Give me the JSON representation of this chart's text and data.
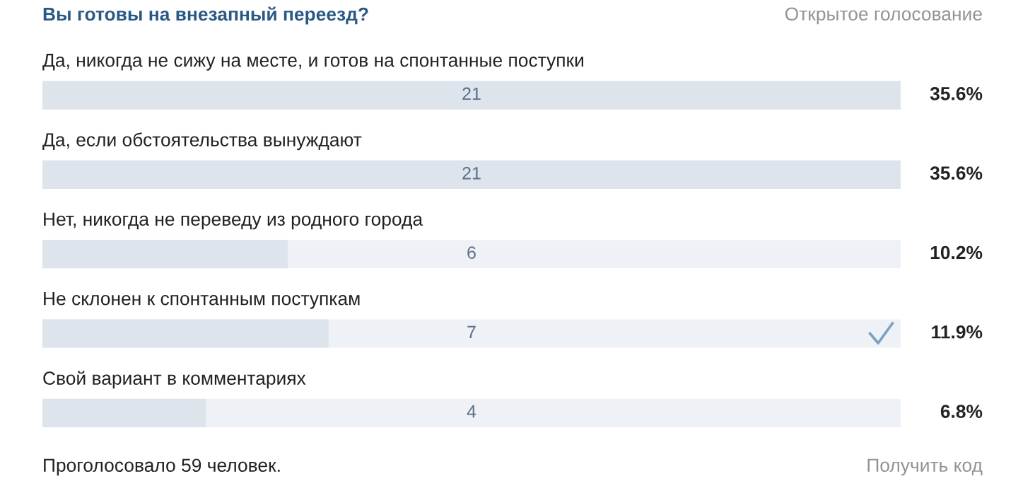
{
  "chart_data": {
    "type": "bar",
    "orientation": "horizontal",
    "title": "Вы готовы на внезапный переезд?",
    "categories": [
      "Да, никогда не сижу на месте, и готов на спонтанные поступки",
      "Да, если обстоятельства вынуждают",
      "Нет, никогда не переведу из родного города",
      "Не склонен к спонтанным поступкам",
      "Свой вариант в комментариях"
    ],
    "values": [
      21,
      21,
      6,
      7,
      4
    ],
    "color": "#dde4ec",
    "data_labels": true,
    "xlim": [
      0,
      21
    ],
    "legend": false,
    "annotations": [
      "35.6%",
      "35.6%",
      "10.2%",
      "11.9%",
      "6.8%",
      "Открытое голосование",
      "Проголосовало 59 человек.",
      "Получить код"
    ]
  }
}
